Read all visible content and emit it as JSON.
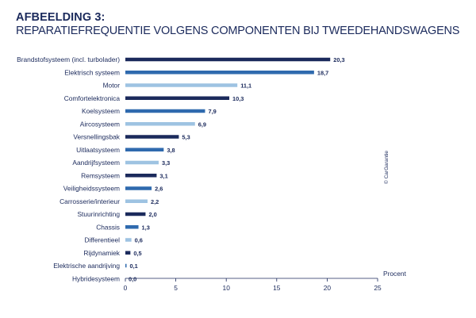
{
  "header": {
    "title": "AFBEELDING 3:",
    "subtitle": "REPARATIEFREQUENTIE VOLGENS COMPONENTEN BIJ TWEEDEHANDSWAGENS"
  },
  "copyright": "© CarGarantie",
  "colors": {
    "dark": "#1b2a5c",
    "medium": "#2f6aae",
    "light": "#9ec3e2",
    "text": "#1b2a5c"
  },
  "chart_data": {
    "type": "bar",
    "orientation": "horizontal",
    "title": "AFBEELDING 3:",
    "subtitle": "REPARATIEFREQUENTIE VOLGENS COMPONENTEN BIJ TWEEDEHANDSWAGENS",
    "xlabel": "Procent",
    "ylabel": "",
    "xlim": [
      0,
      25
    ],
    "xticks": [
      0,
      5,
      10,
      15,
      20,
      25
    ],
    "grid": false,
    "decimal_separator": ",",
    "categories": [
      "Brandstofsysteem (incl. turbolader)",
      "Elektrisch systeem",
      "Motor",
      "Comfortelektronica",
      "Koelsysteem",
      "Aircosysteem",
      "Versnellingsbak",
      "Uitlaatsysteem",
      "Aandrijfsysteem",
      "Remsysteem",
      "Veiligheidssysteem",
      "Carrosserie/interieur",
      "Stuurinrichting",
      "Chassis",
      "Differentieel",
      "Rijdynamiek",
      "Elektrische aandrijving",
      "Hybridesysteem"
    ],
    "values": [
      20.3,
      18.7,
      11.1,
      10.3,
      7.9,
      6.9,
      5.3,
      3.8,
      3.3,
      3.1,
      2.6,
      2.2,
      2.0,
      1.3,
      0.6,
      0.5,
      0.1,
      0.0
    ],
    "value_labels": [
      "20,3",
      "18,7",
      "11,1",
      "10,3",
      "7,9",
      "6,9",
      "5,3",
      "3,8",
      "3,3",
      "3,1",
      "2,6",
      "2,2",
      "2,0",
      "1,3",
      "0,6",
      "0,5",
      "0,1",
      "0,0"
    ],
    "bar_colors": [
      "dark",
      "medium",
      "light",
      "dark",
      "medium",
      "light",
      "dark",
      "medium",
      "light",
      "dark",
      "medium",
      "light",
      "dark",
      "medium",
      "light",
      "dark",
      "medium",
      "light"
    ]
  }
}
